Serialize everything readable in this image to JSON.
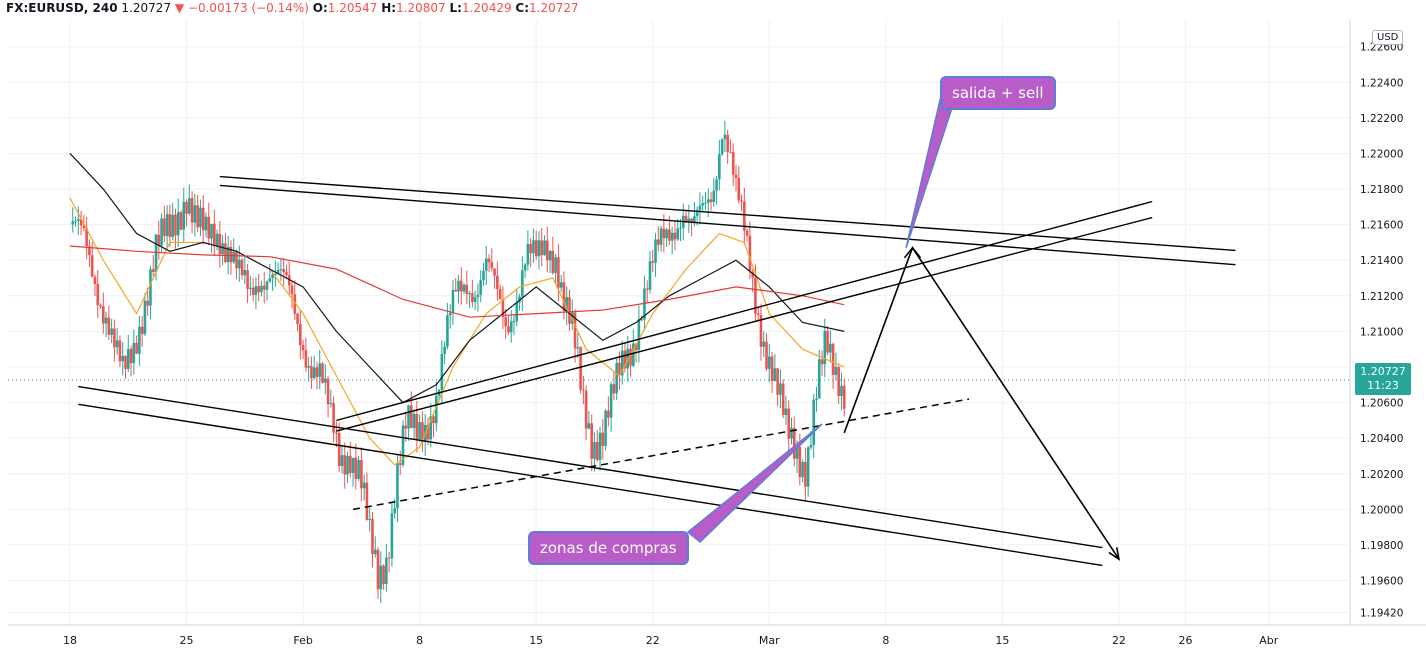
{
  "header": {
    "symbol": "FX:EURUSD, 240",
    "price": "1.20727",
    "change_arrow": "▼",
    "change": "−0.00173 (−0.14%)",
    "o_label": "O:",
    "o": "1.20547",
    "h_label": "H:",
    "h": "1.20807",
    "l_label": "L:",
    "l": "1.20429",
    "c_label": "C:",
    "c": "1.20727"
  },
  "currency_label": "USD",
  "last_price": {
    "value": "1.20727",
    "countdown": "11:23"
  },
  "annotations": {
    "sell": "salida + sell",
    "buy": "zonas de compras"
  },
  "colors": {
    "up": "#26a69a",
    "down": "#ef5350",
    "ema_fast": "#f5a623",
    "ema_mid": "#131722",
    "ema_slow": "#e53935",
    "callout": "#b85cc8"
  },
  "chart_data": {
    "type": "candlestick",
    "timeframe": "240",
    "ylim": [
      1.1935,
      1.2275
    ],
    "y_ticks": [
      "1.22600",
      "1.22400",
      "1.22200",
      "1.22000",
      "1.21800",
      "1.21600",
      "1.21400",
      "1.21200",
      "1.21000",
      "1.20800",
      "1.20600",
      "1.20400",
      "1.20200",
      "1.20000",
      "1.19800",
      "1.19600",
      "1.19420"
    ],
    "x_ticks": [
      "18",
      "25",
      "Feb",
      "8",
      "15",
      "22",
      "Mar",
      "8",
      "15",
      "22",
      "26",
      "Abr"
    ],
    "x_tick_days": [
      0,
      7,
      14,
      21,
      28,
      35,
      42,
      49,
      56,
      63,
      67,
      72
    ],
    "last_price": 1.20727,
    "series": [
      {
        "kind": "close",
        "points": [
          [
            0.0,
            1.216
          ],
          [
            0.8,
            1.215
          ],
          [
            1.5,
            1.213
          ],
          [
            2.2,
            1.211
          ],
          [
            2.8,
            1.2085
          ],
          [
            3.2,
            1.2072
          ],
          [
            3.8,
            1.209
          ],
          [
            4.5,
            1.212
          ],
          [
            5.2,
            1.2145
          ],
          [
            6.0,
            1.2155
          ],
          [
            6.6,
            1.217
          ],
          [
            7.0,
            1.218
          ],
          [
            7.6,
            1.216
          ],
          [
            8.2,
            1.215
          ],
          [
            9.0,
            1.2155
          ],
          [
            9.6,
            1.215
          ],
          [
            10.2,
            1.213
          ],
          [
            10.8,
            1.2115
          ],
          [
            11.4,
            1.213
          ],
          [
            12.0,
            1.2138
          ],
          [
            12.6,
            1.213
          ],
          [
            13.2,
            1.2118
          ],
          [
            13.8,
            1.21
          ],
          [
            14.4,
            1.2085
          ],
          [
            15.0,
            1.2075
          ],
          [
            15.6,
            1.205
          ],
          [
            16.2,
            1.203
          ],
          [
            16.8,
            1.2035
          ],
          [
            17.4,
            1.202
          ],
          [
            18.0,
            1.198
          ],
          [
            18.5,
            1.196
          ],
          [
            19.0,
            1.1975
          ],
          [
            19.6,
            1.202
          ],
          [
            20.2,
            1.2045
          ],
          [
            20.8,
            1.204
          ],
          [
            21.4,
            1.205
          ],
          [
            22.0,
            1.2065
          ],
          [
            22.6,
            1.2095
          ],
          [
            23.2,
            1.212
          ],
          [
            23.8,
            1.213
          ],
          [
            24.4,
            1.2125
          ],
          [
            25.0,
            1.2135
          ],
          [
            25.6,
            1.212
          ],
          [
            26.2,
            1.2105
          ],
          [
            26.8,
            1.212
          ],
          [
            27.4,
            1.214
          ],
          [
            28.0,
            1.2138
          ],
          [
            28.6,
            1.215
          ],
          [
            29.2,
            1.2145
          ],
          [
            29.6,
            1.212
          ],
          [
            30.2,
            1.2095
          ],
          [
            30.8,
            1.206
          ],
          [
            31.4,
            1.204
          ],
          [
            32.0,
            1.2045
          ],
          [
            32.6,
            1.206
          ],
          [
            33.2,
            1.208
          ],
          [
            33.8,
            1.2095
          ],
          [
            34.4,
            1.212
          ],
          [
            35.0,
            1.2135
          ],
          [
            35.6,
            1.215
          ],
          [
            36.2,
            1.216
          ],
          [
            36.8,
            1.217
          ],
          [
            37.4,
            1.2155
          ],
          [
            38.0,
            1.2165
          ],
          [
            38.6,
            1.218
          ],
          [
            39.2,
            1.222
          ],
          [
            39.6,
            1.22
          ],
          [
            40.0,
            1.2175
          ],
          [
            40.6,
            1.215
          ],
          [
            41.2,
            1.212
          ],
          [
            41.8,
            1.209
          ],
          [
            42.4,
            1.2065
          ],
          [
            43.0,
            1.2045
          ],
          [
            43.6,
            1.2038
          ],
          [
            44.2,
            1.2025
          ],
          [
            44.8,
            1.206
          ],
          [
            45.4,
            1.209
          ],
          [
            46.0,
            1.208
          ],
          [
            46.5,
            1.207
          ]
        ]
      },
      {
        "kind": "ema_fast",
        "points": [
          [
            0,
            1.2175
          ],
          [
            2,
            1.214
          ],
          [
            4,
            1.211
          ],
          [
            6,
            1.215
          ],
          [
            8,
            1.215
          ],
          [
            10,
            1.2145
          ],
          [
            12,
            1.2135
          ],
          [
            14,
            1.211
          ],
          [
            16,
            1.2075
          ],
          [
            18,
            1.204
          ],
          [
            19.5,
            1.2025
          ],
          [
            21,
            1.2035
          ],
          [
            23,
            1.208
          ],
          [
            25,
            1.211
          ],
          [
            27,
            1.2125
          ],
          [
            29,
            1.213
          ],
          [
            31,
            1.209
          ],
          [
            33,
            1.2075
          ],
          [
            35,
            1.211
          ],
          [
            37,
            1.2135
          ],
          [
            39,
            1.2155
          ],
          [
            40.5,
            1.215
          ],
          [
            42,
            1.211
          ],
          [
            44,
            1.209
          ],
          [
            46.5,
            1.208
          ]
        ]
      },
      {
        "kind": "ema_mid",
        "points": [
          [
            0,
            1.22
          ],
          [
            2,
            1.218
          ],
          [
            4,
            1.2155
          ],
          [
            6,
            1.2145
          ],
          [
            8,
            1.215
          ],
          [
            10,
            1.2145
          ],
          [
            12,
            1.2135
          ],
          [
            14,
            1.2125
          ],
          [
            16,
            1.21
          ],
          [
            18,
            1.208
          ],
          [
            20,
            1.206
          ],
          [
            22,
            1.207
          ],
          [
            24,
            1.2095
          ],
          [
            26,
            1.211
          ],
          [
            28,
            1.2125
          ],
          [
            30,
            1.211
          ],
          [
            32,
            1.2095
          ],
          [
            34,
            1.2105
          ],
          [
            36,
            1.212
          ],
          [
            38,
            1.213
          ],
          [
            40,
            1.214
          ],
          [
            42,
            1.2125
          ],
          [
            44,
            1.2105
          ],
          [
            46.5,
            1.21
          ]
        ]
      },
      {
        "kind": "ema_slow",
        "points": [
          [
            0,
            1.2148
          ],
          [
            4,
            1.2145
          ],
          [
            8,
            1.2143
          ],
          [
            12,
            1.2142
          ],
          [
            16,
            1.2135
          ],
          [
            20,
            1.2118
          ],
          [
            24,
            1.2108
          ],
          [
            28,
            1.211
          ],
          [
            32,
            1.2112
          ],
          [
            36,
            1.2118
          ],
          [
            40,
            1.2125
          ],
          [
            44,
            1.212
          ],
          [
            46.5,
            1.2115
          ]
        ]
      }
    ],
    "trendlines": [
      {
        "name": "upper-channel-a",
        "from": [
          9.0,
          1.2187
        ],
        "to": [
          70.0,
          1.21455
        ]
      },
      {
        "name": "upper-channel-b",
        "from": [
          9.0,
          1.2182
        ],
        "to": [
          70.0,
          1.21375
        ]
      },
      {
        "name": "lower-channel-a",
        "from": [
          0.5,
          1.2069
        ],
        "to": [
          62.0,
          1.19785
        ]
      },
      {
        "name": "lower-channel-b",
        "from": [
          0.5,
          1.2059
        ],
        "to": [
          62.0,
          1.19685
        ]
      },
      {
        "name": "rising-channel-a",
        "from": [
          16.0,
          1.205
        ],
        "to": [
          65.0,
          1.2173
        ]
      },
      {
        "name": "rising-channel-b",
        "from": [
          16.0,
          1.2044
        ],
        "to": [
          65.0,
          1.2164
        ]
      },
      {
        "name": "dashed-support",
        "from": [
          17.0,
          1.2
        ],
        "to": [
          54.0,
          1.2062
        ],
        "dashed": true
      }
    ],
    "projection": [
      [
        46.5,
        1.2043
      ],
      [
        50.6,
        1.2147
      ],
      [
        63.0,
        1.1972
      ]
    ]
  }
}
